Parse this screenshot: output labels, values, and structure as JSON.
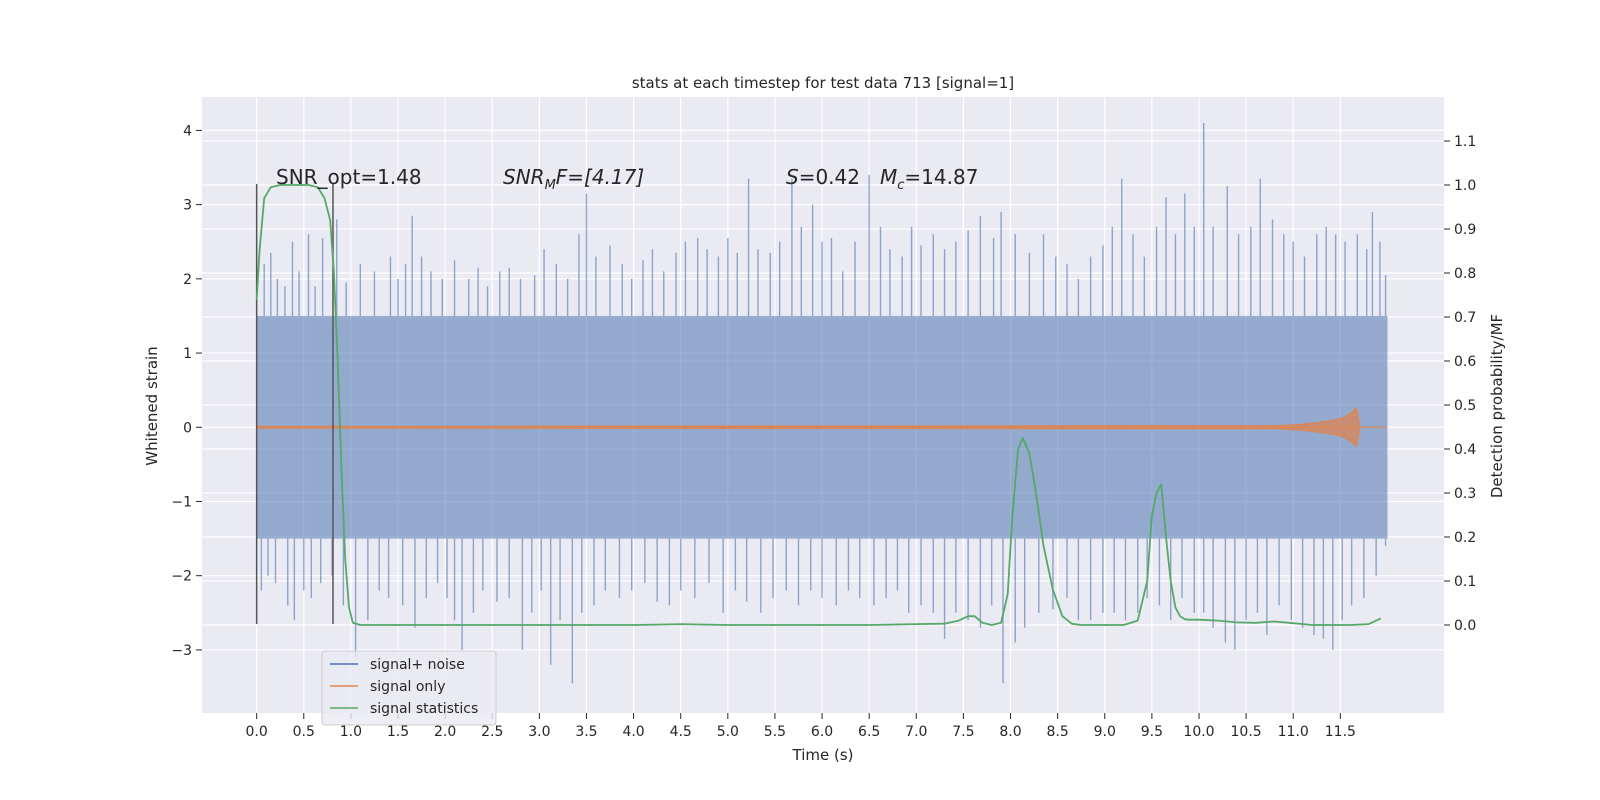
{
  "chart_data": {
    "type": "line",
    "title": "stats at each timestep for test data 713 [signal=1]",
    "xlabel": "Time (s)",
    "ylabel_left": "Whitened strain",
    "ylabel_right": "Detection probability/MF",
    "xlim": [
      -0.58,
      12.6
    ],
    "ylim_left": [
      -3.85,
      4.45
    ],
    "ylim_right": [
      -0.2,
      1.2
    ],
    "x_ticks": [
      0.0,
      0.5,
      1.0,
      1.5,
      2.0,
      2.5,
      3.0,
      3.5,
      4.0,
      4.5,
      5.0,
      5.5,
      6.0,
      6.5,
      7.0,
      7.5,
      8.0,
      8.5,
      9.0,
      9.5,
      10.0,
      10.5,
      11.0,
      11.5
    ],
    "x_tick_labels": [
      "0.0",
      "0.5",
      "1.0",
      "1.5",
      "2.0",
      "2.5",
      "3.0",
      "3.5",
      "4.0",
      "4.5",
      "5.0",
      "5.5",
      "6.0",
      "6.5",
      "7.0",
      "7.5",
      "8.0",
      "8.5",
      "9.0",
      "9.5",
      "10.0",
      "10.5",
      "11.0",
      "11.5"
    ],
    "y_left_ticks": [
      -3,
      -2,
      -1,
      0,
      1,
      2,
      3,
      4
    ],
    "y_left_tick_labels": [
      "−3",
      "−2",
      "−1",
      "0",
      "1",
      "2",
      "3",
      "4"
    ],
    "y_right_ticks": [
      0.0,
      0.1,
      0.2,
      0.3,
      0.4,
      0.5,
      0.6,
      0.7,
      0.8,
      0.9,
      1.0,
      1.1
    ],
    "y_right_tick_labels": [
      "0.0",
      "0.1",
      "0.2",
      "0.3",
      "0.4",
      "0.5",
      "0.6",
      "0.7",
      "0.8",
      "0.9",
      "1.0",
      "1.1"
    ],
    "grid": true,
    "legend_position": "lower-left",
    "annotations": {
      "snr_opt": "SNR_opt=1.48",
      "snr_mf_main": "SNR",
      "snr_mf_sub": "M",
      "snr_mf_rest": "F=[4.17]",
      "s_var": "S",
      "s_val": "=0.42",
      "mc_var": "M",
      "mc_sub": "c",
      "mc_val": "=14.87"
    },
    "markers": [
      {
        "x": 0.0,
        "y_bottom": -2.65,
        "y_top": 3.28
      },
      {
        "x": 0.81,
        "y_bottom": -2.65,
        "y_top": 3.28
      }
    ],
    "series": [
      {
        "name": "signal+ noise",
        "color": "#4c72b0",
        "x_range": [
          0.0,
          12.0
        ],
        "band": [
          -1.5,
          1.5
        ],
        "spikes": [
          [
            0.08,
            2.2
          ],
          [
            0.15,
            2.35
          ],
          [
            0.22,
            2.0
          ],
          [
            0.3,
            1.9
          ],
          [
            0.38,
            2.5
          ],
          [
            0.45,
            2.1
          ],
          [
            0.55,
            2.6
          ],
          [
            0.62,
            1.9
          ],
          [
            0.7,
            2.55
          ],
          [
            0.85,
            2.8
          ],
          [
            0.95,
            1.95
          ],
          [
            1.1,
            2.2
          ],
          [
            1.25,
            2.1
          ],
          [
            1.42,
            2.3
          ],
          [
            1.5,
            2.0
          ],
          [
            1.58,
            2.2
          ],
          [
            1.65,
            2.85
          ],
          [
            1.75,
            2.3
          ],
          [
            1.85,
            2.1
          ],
          [
            1.97,
            2.0
          ],
          [
            2.1,
            2.25
          ],
          [
            2.25,
            2.0
          ],
          [
            2.35,
            2.15
          ],
          [
            2.45,
            1.9
          ],
          [
            2.58,
            2.1
          ],
          [
            2.68,
            2.15
          ],
          [
            2.8,
            2.0
          ],
          [
            2.95,
            2.05
          ],
          [
            3.05,
            2.4
          ],
          [
            3.18,
            2.2
          ],
          [
            3.3,
            2.0
          ],
          [
            3.42,
            2.6
          ],
          [
            3.5,
            3.15
          ],
          [
            3.6,
            2.3
          ],
          [
            3.75,
            2.45
          ],
          [
            3.88,
            2.2
          ],
          [
            3.98,
            2.0
          ],
          [
            4.1,
            2.25
          ],
          [
            4.2,
            2.4
          ],
          [
            4.32,
            2.1
          ],
          [
            4.45,
            2.35
          ],
          [
            4.55,
            2.5
          ],
          [
            4.68,
            2.55
          ],
          [
            4.78,
            2.4
          ],
          [
            4.9,
            2.3
          ],
          [
            5.0,
            2.55
          ],
          [
            5.1,
            2.35
          ],
          [
            5.22,
            3.35
          ],
          [
            5.32,
            2.4
          ],
          [
            5.45,
            2.35
          ],
          [
            5.55,
            2.5
          ],
          [
            5.68,
            3.35
          ],
          [
            5.78,
            2.7
          ],
          [
            5.9,
            3.0
          ],
          [
            6.0,
            2.5
          ],
          [
            6.1,
            2.55
          ],
          [
            6.22,
            2.1
          ],
          [
            6.35,
            2.5
          ],
          [
            6.5,
            3.4
          ],
          [
            6.62,
            2.7
          ],
          [
            6.72,
            2.4
          ],
          [
            6.85,
            2.3
          ],
          [
            6.95,
            2.7
          ],
          [
            7.05,
            2.45
          ],
          [
            7.18,
            2.6
          ],
          [
            7.3,
            2.4
          ],
          [
            7.42,
            2.5
          ],
          [
            7.55,
            2.65
          ],
          [
            7.68,
            2.85
          ],
          [
            7.82,
            2.55
          ],
          [
            7.9,
            2.9
          ],
          [
            8.05,
            2.6
          ],
          [
            8.2,
            2.35
          ],
          [
            8.35,
            2.6
          ],
          [
            8.48,
            2.3
          ],
          [
            8.6,
            2.2
          ],
          [
            8.72,
            2.0
          ],
          [
            8.85,
            2.3
          ],
          [
            8.98,
            2.45
          ],
          [
            9.08,
            2.7
          ],
          [
            9.18,
            3.35
          ],
          [
            9.3,
            2.6
          ],
          [
            9.42,
            2.3
          ],
          [
            9.55,
            2.7
          ],
          [
            9.65,
            3.1
          ],
          [
            9.75,
            2.6
          ],
          [
            9.85,
            3.15
          ],
          [
            9.95,
            2.7
          ],
          [
            10.05,
            4.1
          ],
          [
            10.15,
            2.7
          ],
          [
            10.3,
            3.25
          ],
          [
            10.42,
            2.6
          ],
          [
            10.55,
            2.7
          ],
          [
            10.65,
            3.35
          ],
          [
            10.78,
            2.8
          ],
          [
            10.9,
            2.6
          ],
          [
            11.0,
            2.5
          ],
          [
            11.12,
            2.3
          ],
          [
            11.25,
            2.6
          ],
          [
            11.35,
            2.7
          ],
          [
            11.45,
            2.6
          ],
          [
            11.55,
            2.5
          ],
          [
            11.68,
            2.6
          ],
          [
            11.78,
            2.4
          ],
          [
            11.84,
            2.9
          ],
          [
            11.92,
            2.5
          ],
          [
            11.98,
            2.05
          ]
        ],
        "dips": [
          [
            0.05,
            -2.2
          ],
          [
            0.12,
            -2.0
          ],
          [
            0.2,
            -2.1
          ],
          [
            0.33,
            -2.4
          ],
          [
            0.4,
            -2.6
          ],
          [
            0.5,
            -2.2
          ],
          [
            0.58,
            -2.3
          ],
          [
            0.68,
            -2.1
          ],
          [
            0.8,
            -2.0
          ],
          [
            0.92,
            -2.4
          ],
          [
            1.05,
            -3.1
          ],
          [
            1.18,
            -2.6
          ],
          [
            1.3,
            -2.2
          ],
          [
            1.4,
            -2.3
          ],
          [
            1.55,
            -2.4
          ],
          [
            1.68,
            -2.7
          ],
          [
            1.8,
            -2.3
          ],
          [
            1.92,
            -2.1
          ],
          [
            2.02,
            -2.3
          ],
          [
            2.1,
            -2.6
          ],
          [
            2.18,
            -3.0
          ],
          [
            2.3,
            -2.5
          ],
          [
            2.4,
            -2.2
          ],
          [
            2.55,
            -2.35
          ],
          [
            2.68,
            -2.3
          ],
          [
            2.82,
            -3.0
          ],
          [
            2.92,
            -2.5
          ],
          [
            3.02,
            -2.2
          ],
          [
            3.12,
            -3.2
          ],
          [
            3.22,
            -2.6
          ],
          [
            3.35,
            -3.45
          ],
          [
            3.45,
            -2.5
          ],
          [
            3.58,
            -2.4
          ],
          [
            3.7,
            -2.2
          ],
          [
            3.85,
            -2.3
          ],
          [
            3.98,
            -2.2
          ],
          [
            4.12,
            -2.1
          ],
          [
            4.25,
            -2.35
          ],
          [
            4.38,
            -2.4
          ],
          [
            4.5,
            -2.2
          ],
          [
            4.65,
            -2.3
          ],
          [
            4.8,
            -2.1
          ],
          [
            4.95,
            -2.5
          ],
          [
            5.08,
            -2.2
          ],
          [
            5.2,
            -2.35
          ],
          [
            5.35,
            -2.5
          ],
          [
            5.48,
            -2.3
          ],
          [
            5.62,
            -2.2
          ],
          [
            5.75,
            -2.4
          ],
          [
            5.88,
            -2.2
          ],
          [
            6.0,
            -2.3
          ],
          [
            6.15,
            -2.4
          ],
          [
            6.28,
            -2.2
          ],
          [
            6.4,
            -2.3
          ],
          [
            6.55,
            -2.4
          ],
          [
            6.68,
            -2.3
          ],
          [
            6.8,
            -2.2
          ],
          [
            6.92,
            -2.5
          ],
          [
            7.05,
            -2.4
          ],
          [
            7.18,
            -2.5
          ],
          [
            7.3,
            -2.85
          ],
          [
            7.42,
            -2.5
          ],
          [
            7.55,
            -2.6
          ],
          [
            7.68,
            -2.7
          ],
          [
            7.8,
            -2.4
          ],
          [
            7.92,
            -3.45
          ],
          [
            8.05,
            -2.9
          ],
          [
            8.15,
            -2.7
          ],
          [
            8.3,
            -2.5
          ],
          [
            8.45,
            -2.45
          ],
          [
            8.6,
            -2.3
          ],
          [
            8.72,
            -2.6
          ],
          [
            8.85,
            -2.6
          ],
          [
            8.98,
            -2.5
          ],
          [
            9.1,
            -2.5
          ],
          [
            9.22,
            -2.6
          ],
          [
            9.35,
            -2.5
          ],
          [
            9.45,
            -2.3
          ],
          [
            9.58,
            -2.4
          ],
          [
            9.7,
            -2.6
          ],
          [
            9.82,
            -2.3
          ],
          [
            9.95,
            -2.5
          ],
          [
            10.05,
            -2.5
          ],
          [
            10.15,
            -2.7
          ],
          [
            10.28,
            -2.9
          ],
          [
            10.38,
            -3.0
          ],
          [
            10.5,
            -2.6
          ],
          [
            10.62,
            -2.5
          ],
          [
            10.72,
            -2.8
          ],
          [
            10.85,
            -2.4
          ],
          [
            10.98,
            -2.6
          ],
          [
            11.1,
            -2.7
          ],
          [
            11.22,
            -2.8
          ],
          [
            11.32,
            -2.85
          ],
          [
            11.42,
            -3.0
          ],
          [
            11.52,
            -2.6
          ],
          [
            11.62,
            -2.4
          ],
          [
            11.75,
            -2.3
          ],
          [
            11.88,
            -2.0
          ],
          [
            11.98,
            -1.6
          ]
        ]
      },
      {
        "name": "signal only",
        "color": "#dd8452",
        "x": [
          0.0,
          10.8,
          11.1,
          11.3,
          11.45,
          11.55,
          11.62,
          11.67,
          11.7
        ],
        "envelope": [
          0.01,
          0.02,
          0.04,
          0.07,
          0.1,
          0.14,
          0.2,
          0.26,
          0.05
        ]
      },
      {
        "name": "signal statistics",
        "color": "#55a868",
        "x": [
          0.0,
          0.03,
          0.08,
          0.15,
          0.25,
          0.4,
          0.55,
          0.65,
          0.72,
          0.78,
          0.82,
          0.86,
          0.9,
          0.94,
          0.98,
          1.02,
          1.1,
          1.5,
          2.0,
          3.0,
          4.0,
          4.5,
          5.0,
          6.0,
          6.5,
          7.0,
          7.3,
          7.45,
          7.55,
          7.62,
          7.7,
          7.8,
          7.9,
          7.97,
          8.02,
          8.08,
          8.13,
          8.2,
          8.27,
          8.35,
          8.45,
          8.55,
          8.65,
          8.75,
          8.85,
          9.0,
          9.2,
          9.35,
          9.45,
          9.5,
          9.55,
          9.6,
          9.65,
          9.7,
          9.75,
          9.8,
          9.85,
          9.9,
          10.0,
          10.2,
          10.4,
          10.6,
          10.8,
          11.0,
          11.2,
          11.4,
          11.6,
          11.8,
          11.93
        ],
        "y": [
          0.74,
          0.85,
          0.97,
          0.995,
          1.0,
          1.0,
          1.0,
          0.995,
          0.97,
          0.92,
          0.8,
          0.6,
          0.35,
          0.15,
          0.04,
          0.005,
          0.0,
          0.0,
          0.0,
          0.0,
          0.0,
          0.002,
          0.0,
          0.0,
          0.0,
          0.002,
          0.003,
          0.01,
          0.02,
          0.02,
          0.005,
          0.0,
          0.005,
          0.07,
          0.25,
          0.4,
          0.425,
          0.39,
          0.3,
          0.18,
          0.08,
          0.02,
          0.003,
          0.0,
          0.0,
          0.0,
          0.0,
          0.01,
          0.1,
          0.25,
          0.3,
          0.32,
          0.2,
          0.1,
          0.04,
          0.02,
          0.013,
          0.012,
          0.012,
          0.01,
          0.006,
          0.005,
          0.008,
          0.004,
          0.0,
          0.0,
          0.0,
          0.002,
          0.015
        ]
      }
    ]
  }
}
